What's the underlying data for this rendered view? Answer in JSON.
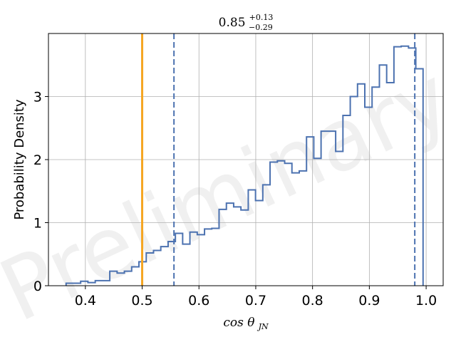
{
  "chart_data": {
    "type": "histogram",
    "title": {
      "main": "0.85",
      "sup": "+0.13",
      "sub": "−0.29"
    },
    "xlabel": {
      "main": "cos θ",
      "sub": "JN"
    },
    "ylabel": "Probability Density",
    "xlim": [
      0.335,
      1.03
    ],
    "ylim": [
      0,
      4.0
    ],
    "xticks": [
      0.4,
      0.5,
      0.6,
      0.7,
      0.8,
      0.9,
      1.0
    ],
    "xtick_labels": [
      "0.4",
      "0.5",
      "0.6",
      "0.7",
      "0.8",
      "0.9",
      "1.0"
    ],
    "yticks": [
      0,
      1,
      2,
      3
    ],
    "ytick_labels": [
      "0",
      "1",
      "2",
      "3"
    ],
    "grid": true,
    "watermark": "Preliminary",
    "colors": {
      "histogram": "#4c72b0",
      "reference_line": "#f5a623",
      "grid": "#b0b0b0"
    },
    "bins": {
      "edges": [
        0.3661,
        0.3789,
        0.3917,
        0.4045,
        0.4174,
        0.4302,
        0.443,
        0.4559,
        0.4687,
        0.4815,
        0.4943,
        0.5072,
        0.52,
        0.5328,
        0.5457,
        0.5585,
        0.5713,
        0.5841,
        0.597,
        0.6098,
        0.6226,
        0.6354,
        0.6483,
        0.6611,
        0.6739,
        0.6868,
        0.6996,
        0.7124,
        0.7252,
        0.7381,
        0.7509,
        0.7637,
        0.7766,
        0.7894,
        0.8022,
        0.815,
        0.8279,
        0.8407,
        0.8535,
        0.8664,
        0.8792,
        0.892,
        0.9048,
        0.9177,
        0.9305,
        0.9433,
        0.9561,
        0.969,
        0.9818,
        0.9946
      ],
      "density": [
        0.04,
        0.04,
        0.07,
        0.05,
        0.08,
        0.08,
        0.23,
        0.2,
        0.23,
        0.3,
        0.38,
        0.52,
        0.56,
        0.62,
        0.7,
        0.83,
        0.66,
        0.85,
        0.81,
        0.9,
        0.91,
        1.21,
        1.31,
        1.25,
        1.2,
        1.52,
        1.35,
        1.6,
        1.96,
        1.98,
        1.94,
        1.79,
        1.82,
        2.36,
        2.02,
        2.45,
        2.45,
        2.13,
        2.7,
        3.0,
        3.2,
        2.83,
        3.15,
        3.5,
        3.22,
        3.79,
        3.8,
        3.77,
        3.44
      ]
    },
    "reference_line": 0.5,
    "credible_interval": [
      0.556,
      0.98
    ],
    "median": 0.85
  }
}
